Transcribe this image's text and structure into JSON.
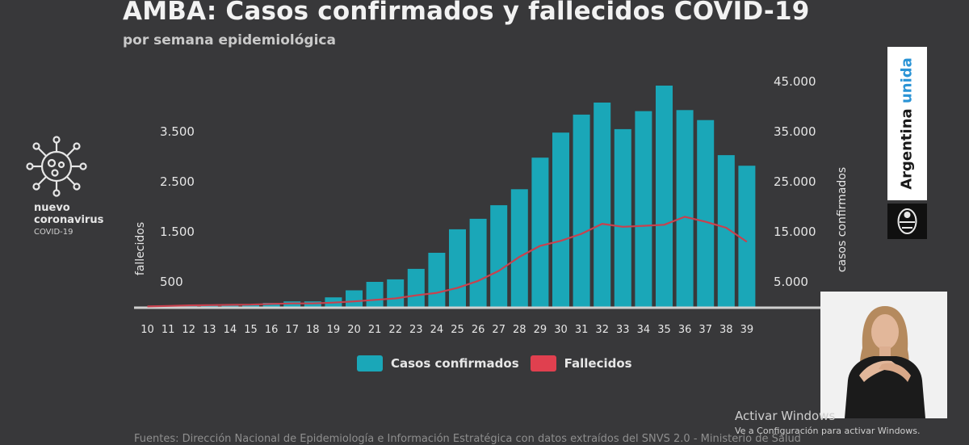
{
  "title": "AMBA: Casos confirmados y fallecidos COVID-19",
  "subtitle": "por semana epidemiológica",
  "logo": {
    "icon": "coronavirus-icon",
    "line1": "nuevo",
    "line2": "coronavirus",
    "line3": "COVID-19"
  },
  "brand": {
    "text_a": "Argentina",
    "text_b": "unida",
    "icon": "national-seal-icon"
  },
  "footer": "Fuentes: Dirección Nacional de Epidemiología e Información Estratégica con datos extraídos del SNVS 2.0 - Ministerio de Salud",
  "watermark": {
    "line1": "Activar Windows",
    "line2": "Ve a Configuración para activar Windows."
  },
  "colors": {
    "background": "#38383a",
    "bars": "#1aa7b8",
    "line": "#c8414e",
    "text": "#e6e6e6"
  },
  "chart_data": {
    "type": "bar",
    "title": "AMBA: Casos confirmados y fallecidos COVID-19",
    "subtitle": "por semana epidemiológica",
    "categories": [
      "10",
      "11",
      "12",
      "13",
      "14",
      "15",
      "16",
      "17",
      "18",
      "19",
      "20",
      "21",
      "22",
      "23",
      "24",
      "25",
      "26",
      "27",
      "28",
      "29",
      "30",
      "31",
      "32",
      "33",
      "34",
      "35",
      "36",
      "37",
      "38",
      "39"
    ],
    "series": [
      {
        "name": "Casos confirmados",
        "axis": "right",
        "type": "bar",
        "values": [
          30,
          150,
          350,
          400,
          500,
          550,
          800,
          1100,
          1100,
          1900,
          3300,
          5000,
          5500,
          7600,
          10800,
          15500,
          17600,
          20300,
          23500,
          29800,
          34800,
          38400,
          40800,
          35500,
          39100,
          44200,
          39300,
          37300,
          30300,
          28200
        ]
      },
      {
        "name": "Fallecidos",
        "axis": "left",
        "type": "line",
        "values": [
          10,
          20,
          30,
          35,
          40,
          45,
          60,
          70,
          70,
          85,
          110,
          140,
          170,
          230,
          280,
          380,
          520,
          720,
          1000,
          1220,
          1320,
          1460,
          1660,
          1600,
          1620,
          1640,
          1800,
          1700,
          1580,
          1300
        ]
      }
    ],
    "y_left": {
      "label": "fallecidos",
      "ticks": [
        "500",
        "1.500",
        "2.500",
        "3.500"
      ],
      "range": [
        0,
        4500
      ]
    },
    "y_right": {
      "label": "casos confirmados",
      "ticks": [
        "5.000",
        "15.000",
        "25.000",
        "35.000",
        "45.000"
      ],
      "range": [
        0,
        45000
      ]
    },
    "legend": "bottom-center",
    "grid": false
  }
}
